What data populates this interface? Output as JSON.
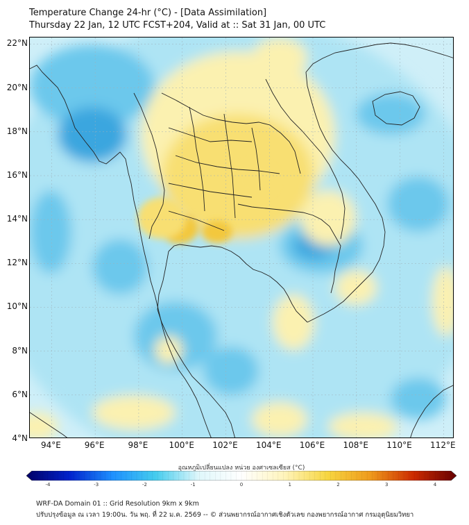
{
  "title": {
    "line1": "Temperature Change 24-hr (°C) - [Data Assimilation]",
    "line2": "Thursday 22 Jan, 12 UTC FCST+204, Valid at :: Sat 31 Jan, 00 UTC"
  },
  "axes": {
    "lat_labels": [
      "22°N",
      "20°N",
      "18°N",
      "16°N",
      "14°N",
      "12°N",
      "10°N",
      "8°N",
      "6°N",
      "4°N"
    ],
    "lon_labels": [
      "94°E",
      "96°E",
      "98°E",
      "100°E",
      "102°E",
      "104°E",
      "106°E",
      "108°E",
      "110°E",
      "112°E"
    ],
    "lat_range": [
      4,
      22.3
    ],
    "lon_range": [
      93,
      112.5
    ]
  },
  "colorbar": {
    "title": "อุณหภูมิเปลี่ยนแปลง หน่วย องศาเซลเซียส (°C)",
    "range": [
      -4,
      4
    ],
    "tick_labels": [
      "-4",
      "-3",
      "-2",
      "-1",
      "0",
      "1",
      "2",
      "3",
      "4"
    ],
    "colors": [
      "#000066",
      "#0022cc",
      "#1e90ff",
      "#44ccee",
      "#dff7fb",
      "#ffffff",
      "#fff4bb",
      "#f7d640",
      "#ef9a1c",
      "#cc2a00",
      "#660000"
    ]
  },
  "map_colors": {
    "background": "#cfeff8",
    "ocean_cool": "#aee4f4",
    "cool": "#6cc8ec",
    "cold": "#3aa6df",
    "warm_light": "#fbf1b0",
    "warm": "#f8df72",
    "hot": "#f3c83d",
    "coast": "#222222"
  },
  "footer": {
    "line1": "WRF-DA Domain 01 :: Grid Resolution 9km x 9km",
    "line2": "ปรับปรุงข้อมูล ณ เวลา 19:00น. วัน พฤ. ที่ 22 ม.ค. 2569 -- © ส่วนพยากรณ์อากาศเชิงตัวเลข กองพยากรณ์อากาศ กรมอุตุนิยมวิทยา"
  }
}
